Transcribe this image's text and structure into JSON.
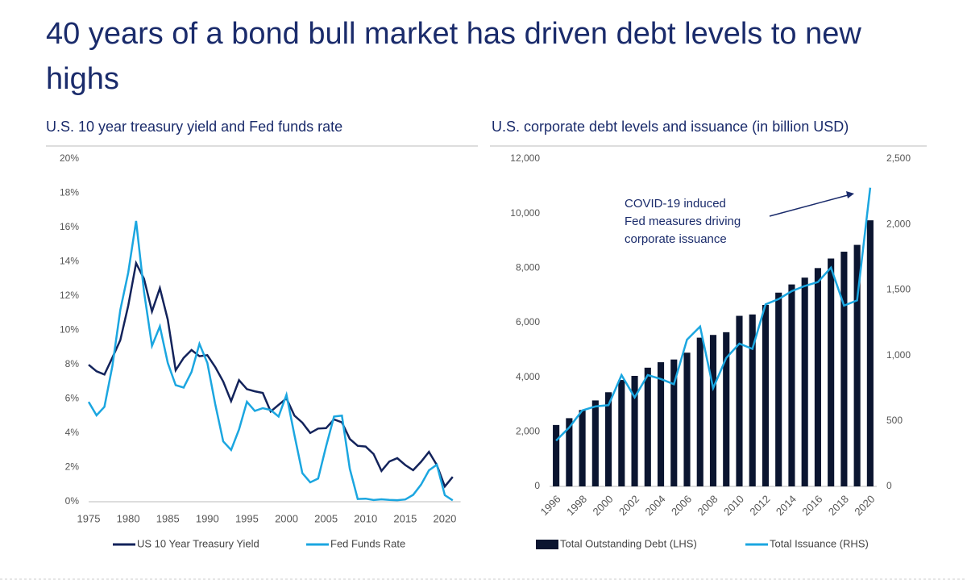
{
  "title": "40 years of a bond bull market has driven debt levels to new highs",
  "chart_data": [
    {
      "type": "line",
      "title": "U.S. 10 year treasury yield and Fed funds rate",
      "x": [
        1975,
        1976,
        1977,
        1978,
        1979,
        1980,
        1981,
        1982,
        1983,
        1984,
        1985,
        1986,
        1987,
        1988,
        1989,
        1990,
        1991,
        1992,
        1993,
        1994,
        1995,
        1996,
        1997,
        1998,
        1999,
        2000,
        2001,
        2002,
        2003,
        2004,
        2005,
        2006,
        2007,
        2008,
        2009,
        2010,
        2011,
        2012,
        2013,
        2014,
        2015,
        2016,
        2017,
        2018,
        2019,
        2020,
        2021
      ],
      "xlim": [
        1975,
        2022
      ],
      "xticks": [
        1975,
        1980,
        1985,
        1990,
        1995,
        2000,
        2005,
        2010,
        2015,
        2020
      ],
      "ylim": [
        0,
        20
      ],
      "yticks": [
        {
          "value": 0,
          "label": "0%"
        },
        {
          "value": 2,
          "label": "2%"
        },
        {
          "value": 4,
          "label": "4%"
        },
        {
          "value": 6,
          "label": "6%"
        },
        {
          "value": 8,
          "label": "8%"
        },
        {
          "value": 10,
          "label": "10%"
        },
        {
          "value": 12,
          "label": "12%"
        },
        {
          "value": 14,
          "label": "14%"
        },
        {
          "value": 16,
          "label": "16%"
        },
        {
          "value": 18,
          "label": "18%"
        },
        {
          "value": 20,
          "label": "20%"
        }
      ],
      "grid": false,
      "series": [
        {
          "name": "US 10 Year Treasury Yield",
          "color": "#13235b",
          "values": [
            7.99,
            7.61,
            7.42,
            8.41,
            9.43,
            11.43,
            13.92,
            13.01,
            11.1,
            12.46,
            10.62,
            7.67,
            8.39,
            8.85,
            8.49,
            8.55,
            7.86,
            7.01,
            5.87,
            7.09,
            6.57,
            6.44,
            6.35,
            5.26,
            5.65,
            6.03,
            5.02,
            4.61,
            4.01,
            4.27,
            4.29,
            4.8,
            4.63,
            3.66,
            3.26,
            3.22,
            2.78,
            1.8,
            2.35,
            2.54,
            2.14,
            1.84,
            2.33,
            2.91,
            2.14,
            0.89,
            1.45
          ]
        },
        {
          "name": "Fed Funds Rate",
          "color": "#1ba6e0",
          "values": [
            5.82,
            5.04,
            5.54,
            7.93,
            11.19,
            13.36,
            16.38,
            12.26,
            9.09,
            10.23,
            8.1,
            6.8,
            6.66,
            7.57,
            9.21,
            8.1,
            5.69,
            3.52,
            3.02,
            4.21,
            5.83,
            5.3,
            5.46,
            5.35,
            4.97,
            6.24,
            3.88,
            1.67,
            1.13,
            1.35,
            3.22,
            4.97,
            5.02,
            1.92,
            0.16,
            0.18,
            0.1,
            0.14,
            0.11,
            0.09,
            0.13,
            0.4,
            1.0,
            1.83,
            2.16,
            0.38,
            0.08
          ]
        }
      ]
    },
    {
      "type": "bar",
      "title": "U.S. corporate debt levels and issuance (in billion USD)",
      "categories": [
        "1996",
        null,
        "1998",
        null,
        "2000",
        null,
        "2002",
        null,
        "2004",
        null,
        "2006",
        null,
        "2008",
        null,
        "2010",
        null,
        "2012",
        null,
        "2014",
        null,
        "2016",
        null,
        "2018",
        null,
        "2020"
      ],
      "ylim": [
        0,
        12000
      ],
      "yticks": [
        0,
        {
          "value": 2000,
          "label": "2,000"
        },
        {
          "value": 4000,
          "label": "4,000"
        },
        {
          "value": 6000,
          "label": "6,000"
        },
        {
          "value": 8000,
          "label": "8,000"
        },
        {
          "value": 10000,
          "label": "10,000"
        },
        {
          "value": 12000,
          "label": "12,000"
        }
      ],
      "y2lim": [
        0,
        2500
      ],
      "y2ticks": [
        0,
        500,
        {
          "value": 1000,
          "label": "1,000"
        },
        {
          "value": 1500,
          "label": "1,500"
        },
        {
          "value": 2000,
          "label": "2,000"
        },
        {
          "value": 2500,
          "label": "2,500"
        }
      ],
      "grid": false,
      "annotation": [
        "COVID-19 induced",
        "Fed measures driving",
        "corporate issuance"
      ],
      "series": [
        {
          "name": "Total Outstanding Debt (LHS)",
          "type": "bar",
          "color": "#0b1530",
          "values": [
            2250,
            2500,
            2800,
            3150,
            3450,
            3900,
            4050,
            4350,
            4550,
            4650,
            4900,
            5450,
            5550,
            5650,
            6250,
            6300,
            6650,
            7100,
            7400,
            7650,
            8000,
            8350,
            8600,
            8850,
            9750
          ]
        },
        {
          "name": "Total Issuance (RHS)",
          "type": "line",
          "axis": "y2",
          "color": "#1ba6e0",
          "values": [
            350,
            450,
            580,
            610,
            620,
            850,
            680,
            850,
            820,
            780,
            1120,
            1220,
            750,
            980,
            1090,
            1050,
            1390,
            1430,
            1490,
            1530,
            1560,
            1670,
            1380,
            1420,
            2280
          ]
        }
      ]
    }
  ]
}
